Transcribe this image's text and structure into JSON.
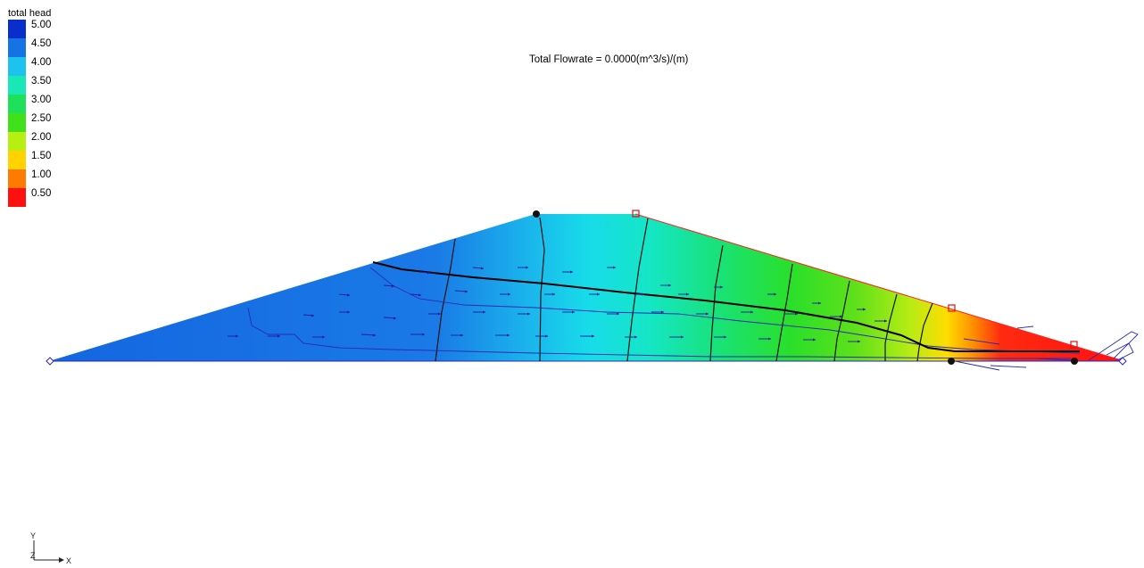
{
  "legend": {
    "title": "total head",
    "items": [
      {
        "label": "5.00",
        "color": "#0a2ecc"
      },
      {
        "label": "4.50",
        "color": "#1673e6"
      },
      {
        "label": "4.00",
        "color": "#1ec2ee"
      },
      {
        "label": "3.50",
        "color": "#19e8b6"
      },
      {
        "label": "3.00",
        "color": "#1ee05a"
      },
      {
        "label": "2.50",
        "color": "#42e01a"
      },
      {
        "label": "2.00",
        "color": "#b8ef12"
      },
      {
        "label": "1.50",
        "color": "#ffd200"
      },
      {
        "label": "1.00",
        "color": "#ff7a00"
      },
      {
        "label": "0.50",
        "color": "#ff1010"
      }
    ]
  },
  "annotation": {
    "flowrate_text": "Total Flowrate = 0.0000(m^3/s)/(m)"
  },
  "axes_triad": {
    "y_label": "Y",
    "z_label": "Z",
    "x_label": "X"
  },
  "colors": {
    "phreatic_line": "#000000",
    "flow_lines": "#2a2ab4",
    "vectors": "#1c1c9a",
    "boundary_marker": "#e01010"
  }
}
